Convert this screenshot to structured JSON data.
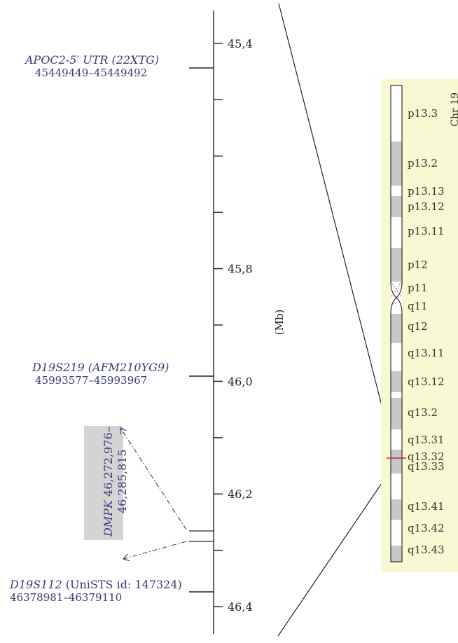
{
  "scale": {
    "unit_label": "(Mb)",
    "min_mb": 45.31,
    "max_mb": 46.45,
    "ticks": [
      {
        "mb": 45.4,
        "label": "45,4"
      },
      {
        "mb": 45.5,
        "label": ""
      },
      {
        "mb": 45.6,
        "label": ""
      },
      {
        "mb": 45.7,
        "label": ""
      },
      {
        "mb": 45.8,
        "label": "45,8"
      },
      {
        "mb": 45.9,
        "label": ""
      },
      {
        "mb": 46.0,
        "label": "46,0"
      },
      {
        "mb": 46.1,
        "label": ""
      },
      {
        "mb": 46.2,
        "label": "46,2"
      },
      {
        "mb": 46.3,
        "label": ""
      },
      {
        "mb": 46.4,
        "label": "46,4"
      }
    ]
  },
  "markers": {
    "apoc2": {
      "name": "APOC2-5′ UTR (22XTG)",
      "range": "45449449–45449492",
      "mb": 45.449
    },
    "d19s219": {
      "name": "D19S219 (AFM210YG9)",
      "range": "45993577–45993967",
      "mb": 45.994
    },
    "d19s112": {
      "name_italic": "D19S112",
      "name_rest": " (UniSTS id: 147324)",
      "range": "46378981–46379110",
      "mb": 46.379
    }
  },
  "gene": {
    "name": "DMPK",
    "line1_rest": " 46,272,976–",
    "line2": "46,285,815",
    "start_mb": 46.273,
    "end_mb": 46.286,
    "box_color": "#d4d4d4"
  },
  "chromosome": {
    "title": "Chr 19",
    "panel_color": "#f8f8d2",
    "highlight_band": "q13.32",
    "highlight_color": "#d62020",
    "bands": [
      {
        "label": "p13.3",
        "stain": "white"
      },
      {
        "label": "p13.2",
        "stain": "gray"
      },
      {
        "label": "p13.13",
        "stain": "white"
      },
      {
        "label": "p13.12",
        "stain": "gray"
      },
      {
        "label": "p13.11",
        "stain": "white"
      },
      {
        "label": "p12",
        "stain": "gray"
      },
      {
        "label": "p11",
        "stain": "centromere"
      },
      {
        "label": "q11",
        "stain": "centromere"
      },
      {
        "label": "q12",
        "stain": "gray"
      },
      {
        "label": "q13.11",
        "stain": "white"
      },
      {
        "label": "q13.12",
        "stain": "gray"
      },
      {
        "label": "q13.2",
        "stain": "gray"
      },
      {
        "label": "q13.31",
        "stain": "white"
      },
      {
        "label": "q13.32",
        "stain": "gray"
      },
      {
        "label": "q13.33",
        "stain": "white"
      },
      {
        "label": "q13.41",
        "stain": "gray"
      },
      {
        "label": "q13.42",
        "stain": "white"
      },
      {
        "label": "q13.43",
        "stain": "gray"
      }
    ]
  },
  "colors": {
    "ink": "#222222",
    "marker_text": "#3b3a78",
    "gray_band": "#c8c8c8",
    "arrow": "#3b3a78"
  }
}
